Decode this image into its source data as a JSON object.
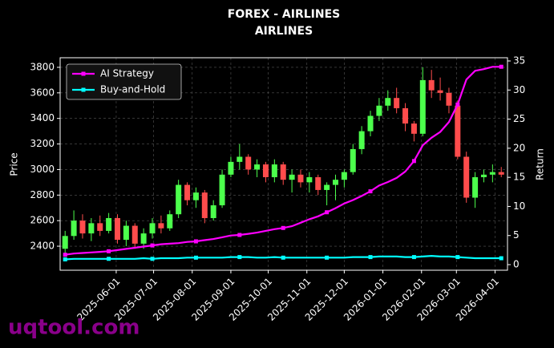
{
  "chart_data": {
    "type": "candlestick",
    "title": "FOREX - AIRLINES",
    "subtitle": "AIRLINES",
    "ylabel": "Price",
    "y2label": "Return",
    "x": [
      "2025-04-21",
      "2025-04-28",
      "2025-05-05",
      "2025-05-12",
      "2025-05-19",
      "2025-05-26",
      "2025-06-02",
      "2025-06-09",
      "2025-06-16",
      "2025-06-23",
      "2025-06-30",
      "2025-07-07",
      "2025-07-14",
      "2025-07-21",
      "2025-07-28",
      "2025-08-04",
      "2025-08-11",
      "2025-08-18",
      "2025-08-25",
      "2025-09-01",
      "2025-09-08",
      "2025-09-15",
      "2025-09-22",
      "2025-09-29",
      "2025-10-06",
      "2025-10-13",
      "2025-10-20",
      "2025-10-27",
      "2025-11-03",
      "2025-11-10",
      "2025-11-17",
      "2025-11-24",
      "2025-12-01",
      "2025-12-08",
      "2025-12-15",
      "2025-12-22",
      "2025-12-29",
      "2026-01-05",
      "2026-01-12",
      "2026-01-19",
      "2026-01-26",
      "2026-02-02",
      "2026-02-09",
      "2026-02-16",
      "2026-02-23",
      "2026-03-02",
      "2026-03-09",
      "2026-03-16",
      "2026-03-23",
      "2026-03-30",
      "2026-04-06"
    ],
    "open": [
      2380,
      2480,
      2600,
      2500,
      2580,
      2520,
      2620,
      2450,
      2560,
      2420,
      2500,
      2580,
      2540,
      2650,
      2880,
      2760,
      2820,
      2620,
      2720,
      2960,
      3060,
      3100,
      3000,
      3040,
      2940,
      3040,
      2920,
      2960,
      2900,
      2940,
      2840,
      2880,
      2920,
      2980,
      3160,
      3300,
      3420,
      3500,
      3560,
      3480,
      3360,
      3280,
      3700,
      3620,
      3600,
      3500,
      3100,
      2780,
      2940,
      2960,
      2980
    ],
    "high": [
      2520,
      2680,
      2650,
      2620,
      2640,
      2660,
      2650,
      2600,
      2580,
      2540,
      2620,
      2640,
      2680,
      2920,
      2900,
      2860,
      2840,
      2760,
      3000,
      3100,
      3200,
      3120,
      3080,
      3060,
      3080,
      3060,
      3000,
      3000,
      2980,
      2960,
      2900,
      2960,
      3000,
      3200,
      3340,
      3460,
      3560,
      3620,
      3640,
      3520,
      3380,
      3800,
      3780,
      3720,
      3640,
      3540,
      3140,
      2980,
      3000,
      3040,
      3020
    ],
    "low": [
      2340,
      2450,
      2460,
      2440,
      2480,
      2500,
      2420,
      2400,
      2380,
      2380,
      2460,
      2500,
      2520,
      2620,
      2720,
      2700,
      2580,
      2600,
      2700,
      2940,
      3000,
      2960,
      2940,
      2900,
      2900,
      2880,
      2820,
      2860,
      2820,
      2800,
      2720,
      2760,
      2860,
      2960,
      3120,
      3260,
      3380,
      3460,
      3440,
      3300,
      3220,
      3260,
      3560,
      3540,
      3440,
      3080,
      2740,
      2700,
      2900,
      2900,
      2940
    ],
    "close": [
      2480,
      2600,
      2500,
      2580,
      2520,
      2620,
      2450,
      2560,
      2420,
      2500,
      2580,
      2540,
      2650,
      2880,
      2760,
      2820,
      2620,
      2720,
      2960,
      3060,
      3100,
      3000,
      3040,
      2940,
      3040,
      2920,
      2960,
      2900,
      2940,
      2840,
      2880,
      2920,
      2980,
      3160,
      3300,
      3420,
      3500,
      3560,
      3480,
      3360,
      3280,
      3700,
      3620,
      3600,
      3500,
      3100,
      2780,
      2940,
      2960,
      2980,
      2960
    ],
    "up_color": "#4cff4c",
    "down_color": "#ff4c4c",
    "series": [
      {
        "name": "AI Strategy",
        "color": "#ff00ff",
        "axis": "y2",
        "values": [
          1.7,
          1.9,
          2.0,
          2.1,
          2.2,
          2.3,
          2.5,
          2.7,
          2.9,
          3.1,
          3.3,
          3.5,
          3.6,
          3.7,
          3.9,
          4.0,
          4.2,
          4.4,
          4.7,
          5.0,
          5.1,
          5.3,
          5.5,
          5.8,
          6.1,
          6.3,
          6.6,
          7.2,
          7.8,
          8.3,
          9.0,
          9.7,
          10.5,
          11.1,
          11.8,
          12.6,
          13.6,
          14.2,
          14.9,
          16.0,
          17.8,
          20.5,
          21.8,
          22.8,
          24.5,
          27.5,
          31.8,
          33.3,
          33.6,
          34.0,
          34.0
        ]
      },
      {
        "name": "Buy-and-Hold",
        "color": "#00ffff",
        "axis": "y2",
        "values": [
          0.9,
          1.0,
          1.0,
          1.0,
          1.0,
          1.0,
          1.0,
          1.0,
          1.0,
          1.1,
          1.0,
          1.1,
          1.1,
          1.1,
          1.2,
          1.2,
          1.2,
          1.2,
          1.2,
          1.3,
          1.3,
          1.3,
          1.2,
          1.2,
          1.3,
          1.2,
          1.2,
          1.2,
          1.2,
          1.2,
          1.2,
          1.2,
          1.2,
          1.3,
          1.3,
          1.3,
          1.4,
          1.4,
          1.4,
          1.3,
          1.3,
          1.4,
          1.5,
          1.4,
          1.4,
          1.3,
          1.2,
          1.1,
          1.1,
          1.1,
          1.1
        ]
      }
    ],
    "xlim": [
      "2025-04-17",
      "2026-04-11"
    ],
    "xticks": [
      "2025-06-01",
      "2025-07-01",
      "2025-08-01",
      "2025-09-01",
      "2025-10-01",
      "2025-11-01",
      "2025-12-01",
      "2026-01-01",
      "2026-02-01",
      "2026-03-01",
      "2026-04-01"
    ],
    "ylim": [
      2212,
      3875
    ],
    "yticks": [
      2400,
      2600,
      2800,
      3000,
      3200,
      3400,
      3600,
      3800
    ],
    "y2lim": [
      -0.96,
      35.55
    ],
    "y2ticks": [
      0,
      5,
      10,
      15,
      20,
      25,
      30,
      35
    ],
    "grid": true,
    "legend": "upper left"
  },
  "watermark": "uqtool.com"
}
